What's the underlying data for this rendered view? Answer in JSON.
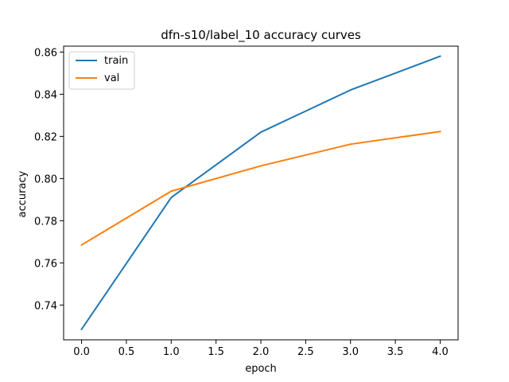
{
  "chart_data": {
    "type": "line",
    "title": "dfn-s10/label_10 accuracy curves",
    "xlabel": "epoch",
    "ylabel": "accuracy",
    "x": [
      0,
      1,
      2,
      3,
      4
    ],
    "xlim": [
      -0.2,
      4.2
    ],
    "ylim": [
      0.7235,
      0.8628
    ],
    "xticks": [
      0.0,
      0.5,
      1.0,
      1.5,
      2.0,
      2.5,
      3.0,
      3.5,
      4.0
    ],
    "xtick_labels": [
      "0.0",
      "0.5",
      "1.0",
      "1.5",
      "2.0",
      "2.5",
      "3.0",
      "3.5",
      "4.0"
    ],
    "yticks": [
      0.74,
      0.76,
      0.78,
      0.8,
      0.82,
      0.84,
      0.86
    ],
    "ytick_labels": [
      "0.74",
      "0.76",
      "0.78",
      "0.80",
      "0.82",
      "0.84",
      "0.86"
    ],
    "grid": false,
    "legend_position": "top-left",
    "series": [
      {
        "name": "train",
        "color": "#1f77b4",
        "values": [
          0.7285,
          0.791,
          0.822,
          0.842,
          0.858
        ]
      },
      {
        "name": "val",
        "color": "#ff7f0e",
        "values": [
          0.7685,
          0.794,
          0.806,
          0.8163,
          0.8223
        ]
      }
    ]
  }
}
